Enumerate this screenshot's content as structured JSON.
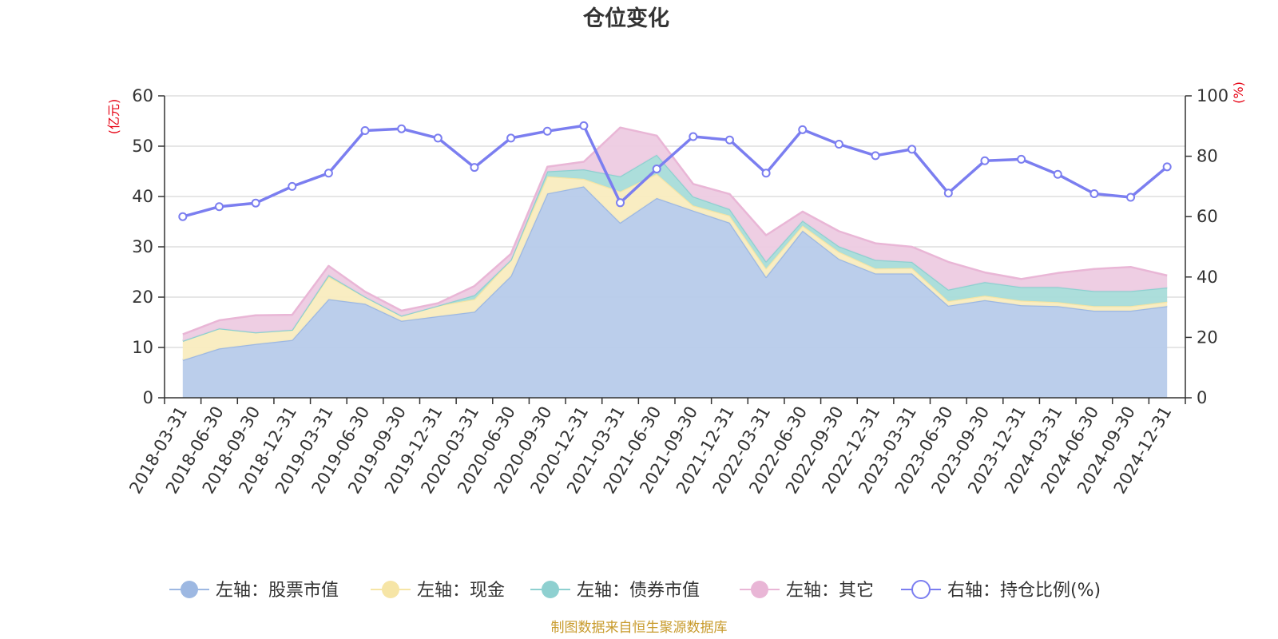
{
  "chart_data": {
    "type": "area",
    "title": "仓位变化",
    "left_unit": "(亿元)",
    "right_unit": "(%)",
    "categories": [
      "2018-03-31",
      "2018-06-30",
      "2018-09-30",
      "2018-12-31",
      "2019-03-31",
      "2019-06-30",
      "2019-09-30",
      "2019-12-31",
      "2020-03-31",
      "2020-06-30",
      "2020-09-30",
      "2020-12-31",
      "2021-03-31",
      "2021-06-30",
      "2021-09-30",
      "2021-12-31",
      "2022-03-31",
      "2022-06-30",
      "2022-09-30",
      "2022-12-31",
      "2023-03-31",
      "2023-06-30",
      "2023-09-30",
      "2023-12-31",
      "2024-03-31",
      "2024-06-30",
      "2024-09-30",
      "2024-12-31"
    ],
    "y_left": {
      "min": 0,
      "max": 60,
      "ticks": [
        0,
        10,
        20,
        30,
        40,
        50,
        60
      ]
    },
    "y_right": {
      "min": 0,
      "max": 100,
      "ticks": [
        0,
        20,
        40,
        60,
        80,
        100
      ]
    },
    "stacked_series": [
      {
        "name": "左轴：股票市值",
        "color": "#9db8e2",
        "fill": "#b7cbea",
        "values": [
          7.5,
          9.8,
          10.7,
          11.5,
          19.6,
          18.7,
          15.3,
          16.2,
          17.1,
          24.2,
          40.6,
          42.0,
          34.8,
          39.7,
          37.2,
          34.8,
          24.0,
          33.2,
          27.6,
          24.7,
          24.7,
          18.3,
          19.4,
          18.4,
          18.2,
          17.3,
          17.3,
          18.2
        ]
      },
      {
        "name": "左轴：现金",
        "color": "#f6e5a6",
        "fill": "#f9ecbf",
        "values": [
          3.8,
          4.0,
          2.3,
          2.0,
          4.5,
          1.4,
          1.0,
          2.1,
          2.5,
          3.2,
          3.4,
          1.5,
          6.2,
          4.8,
          1.0,
          1.4,
          1.7,
          1.0,
          1.4,
          1.0,
          1.1,
          0.9,
          0.9,
          0.9,
          0.8,
          0.9,
          0.9,
          0.9
        ]
      },
      {
        "name": "左轴：债券市值",
        "color": "#8ed0d0",
        "fill": "#a8dcd9",
        "values": [
          0,
          0,
          0,
          0,
          0.3,
          0,
          0,
          0,
          0.8,
          0,
          1.0,
          1.9,
          3.0,
          3.8,
          1.8,
          1.3,
          1.4,
          1.0,
          1.1,
          1.7,
          1.2,
          2.3,
          2.7,
          2.7,
          3.0,
          3.0,
          3.0,
          2.8
        ]
      },
      {
        "name": "左轴：其它",
        "color": "#e9b6d6",
        "fill": "#edcbe2",
        "values": [
          1.3,
          1.6,
          3.4,
          3.0,
          1.8,
          1.0,
          1.0,
          0.5,
          1.8,
          1.2,
          0.9,
          1.5,
          9.7,
          3.8,
          2.5,
          3.0,
          5.2,
          1.8,
          3.0,
          3.3,
          3.0,
          5.5,
          1.9,
          1.6,
          2.8,
          4.4,
          4.8,
          2.4
        ]
      }
    ],
    "line_series": {
      "name": "右轴：持仓比例(%)",
      "color": "#7b7ef0",
      "values": [
        60.0,
        63.3,
        64.5,
        70.0,
        74.4,
        88.5,
        89.1,
        86.0,
        76.3,
        86.0,
        88.3,
        90.1,
        64.6,
        75.8,
        86.5,
        85.4,
        74.4,
        88.8,
        84.0,
        80.2,
        82.3,
        67.8,
        78.5,
        79.0,
        74.0,
        67.6,
        66.4,
        76.5
      ]
    },
    "legend_position": "bottom",
    "grid": true
  },
  "source_note": "制图数据来自恒生聚源数据库"
}
